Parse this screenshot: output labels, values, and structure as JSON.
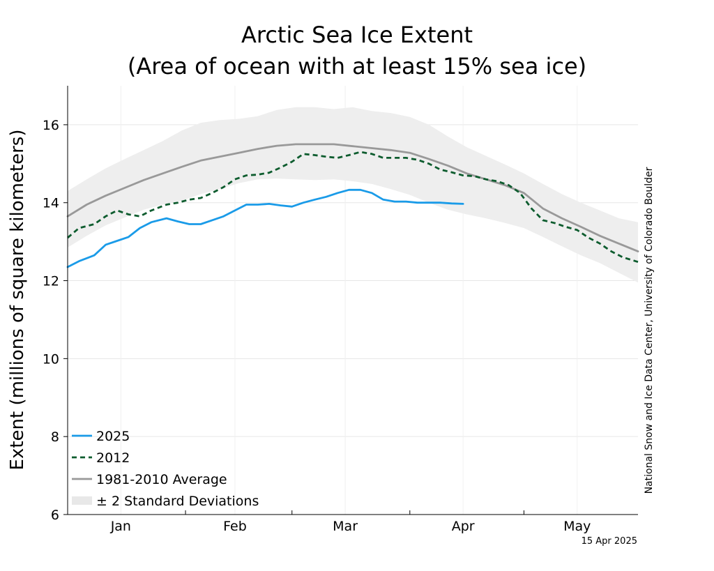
{
  "chart_data": {
    "type": "line",
    "title": "Arctic Sea Ice Extent",
    "subtitle": "(Area of ocean with at least 15% sea ice)",
    "ylabel": "Extent (millions of square kilometers)",
    "xlabel": "",
    "ylim": [
      6,
      17
    ],
    "xlim": [
      0,
      150
    ],
    "yticks": [
      6,
      8,
      10,
      12,
      14,
      16
    ],
    "x_month_labels": [
      {
        "label": "Jan",
        "x": 14
      },
      {
        "label": "Feb",
        "x": 44
      },
      {
        "label": "Mar",
        "x": 73
      },
      {
        "label": "Apr",
        "x": 104
      },
      {
        "label": "May",
        "x": 134
      }
    ],
    "x_month_boundaries": [
      31,
      59,
      90,
      120
    ],
    "grid": true,
    "legend_position": "bottom-left",
    "series": [
      {
        "name": "2025",
        "color": "#1a9be8",
        "style": "solid",
        "x": [
          0,
          3,
          7,
          10,
          13,
          16,
          19,
          22,
          26,
          29,
          32,
          35,
          38,
          41,
          44,
          47,
          50,
          53,
          56,
          59,
          62,
          65,
          68,
          71,
          74,
          77,
          80,
          83,
          86,
          89,
          92,
          95,
          98,
          101,
          104
        ],
        "values": [
          12.35,
          12.5,
          12.65,
          12.92,
          13.02,
          13.12,
          13.35,
          13.5,
          13.6,
          13.52,
          13.45,
          13.45,
          13.55,
          13.65,
          13.8,
          13.95,
          13.95,
          13.97,
          13.93,
          13.9,
          14.0,
          14.08,
          14.15,
          14.25,
          14.33,
          14.33,
          14.25,
          14.08,
          14.03,
          14.03,
          14.0,
          14.0,
          14.0,
          13.98,
          13.97
        ]
      },
      {
        "name": "2012",
        "color": "#0d5c2e",
        "style": "dashed",
        "x": [
          0,
          3,
          7,
          10,
          13,
          16,
          19,
          22,
          26,
          29,
          32,
          35,
          38,
          41,
          44,
          47,
          50,
          53,
          56,
          59,
          62,
          65,
          68,
          71,
          74,
          77,
          80,
          83,
          86,
          89,
          92,
          95,
          98,
          101,
          104,
          107,
          110,
          113,
          116,
          119,
          122,
          125,
          128,
          131,
          134,
          137,
          140,
          143,
          146,
          150
        ],
        "values": [
          13.1,
          13.35,
          13.45,
          13.65,
          13.8,
          13.7,
          13.65,
          13.8,
          13.95,
          14.0,
          14.08,
          14.12,
          14.25,
          14.4,
          14.6,
          14.7,
          14.72,
          14.77,
          14.9,
          15.05,
          15.25,
          15.22,
          15.18,
          15.15,
          15.22,
          15.3,
          15.25,
          15.15,
          15.15,
          15.15,
          15.1,
          15.0,
          14.85,
          14.78,
          14.7,
          14.68,
          14.6,
          14.55,
          14.45,
          14.25,
          13.85,
          13.55,
          13.48,
          13.38,
          13.3,
          13.1,
          12.95,
          12.75,
          12.6,
          12.48
        ]
      },
      {
        "name": "1981-2010 Average",
        "color": "#999999",
        "style": "solid",
        "x": [
          0,
          5,
          10,
          15,
          20,
          25,
          30,
          35,
          40,
          45,
          50,
          55,
          60,
          65,
          70,
          75,
          80,
          85,
          90,
          95,
          100,
          105,
          110,
          115,
          120,
          125,
          130,
          135,
          140,
          145,
          150
        ],
        "values": [
          13.65,
          13.95,
          14.18,
          14.38,
          14.58,
          14.75,
          14.92,
          15.08,
          15.18,
          15.28,
          15.38,
          15.46,
          15.5,
          15.5,
          15.5,
          15.45,
          15.4,
          15.35,
          15.28,
          15.12,
          14.95,
          14.75,
          14.6,
          14.45,
          14.25,
          13.85,
          13.6,
          13.38,
          13.15,
          12.95,
          12.75
        ]
      }
    ],
    "band": {
      "name": "± 2 Standard Deviations",
      "color": "#eeeeee",
      "x": [
        0,
        5,
        10,
        15,
        20,
        25,
        30,
        35,
        40,
        45,
        50,
        55,
        60,
        65,
        70,
        75,
        80,
        85,
        90,
        95,
        100,
        105,
        110,
        115,
        120,
        125,
        130,
        135,
        140,
        145,
        150
      ],
      "upper": [
        14.3,
        14.6,
        14.88,
        15.12,
        15.35,
        15.58,
        15.85,
        16.05,
        16.12,
        16.15,
        16.22,
        16.38,
        16.45,
        16.45,
        16.4,
        16.45,
        16.35,
        16.3,
        16.2,
        16.0,
        15.7,
        15.42,
        15.2,
        14.98,
        14.75,
        14.48,
        14.22,
        14.0,
        13.8,
        13.6,
        13.5
      ],
      "lower": [
        12.85,
        13.15,
        13.42,
        13.62,
        13.82,
        13.95,
        14.05,
        14.22,
        14.35,
        14.5,
        14.6,
        14.62,
        14.6,
        14.58,
        14.6,
        14.55,
        14.48,
        14.35,
        14.2,
        14.0,
        13.82,
        13.7,
        13.6,
        13.48,
        13.35,
        13.12,
        12.88,
        12.65,
        12.45,
        12.2,
        11.95
      ]
    },
    "credit": "National Snow and Ice Data Center, University of Colorado Boulder",
    "date": "15 Apr 2025"
  }
}
